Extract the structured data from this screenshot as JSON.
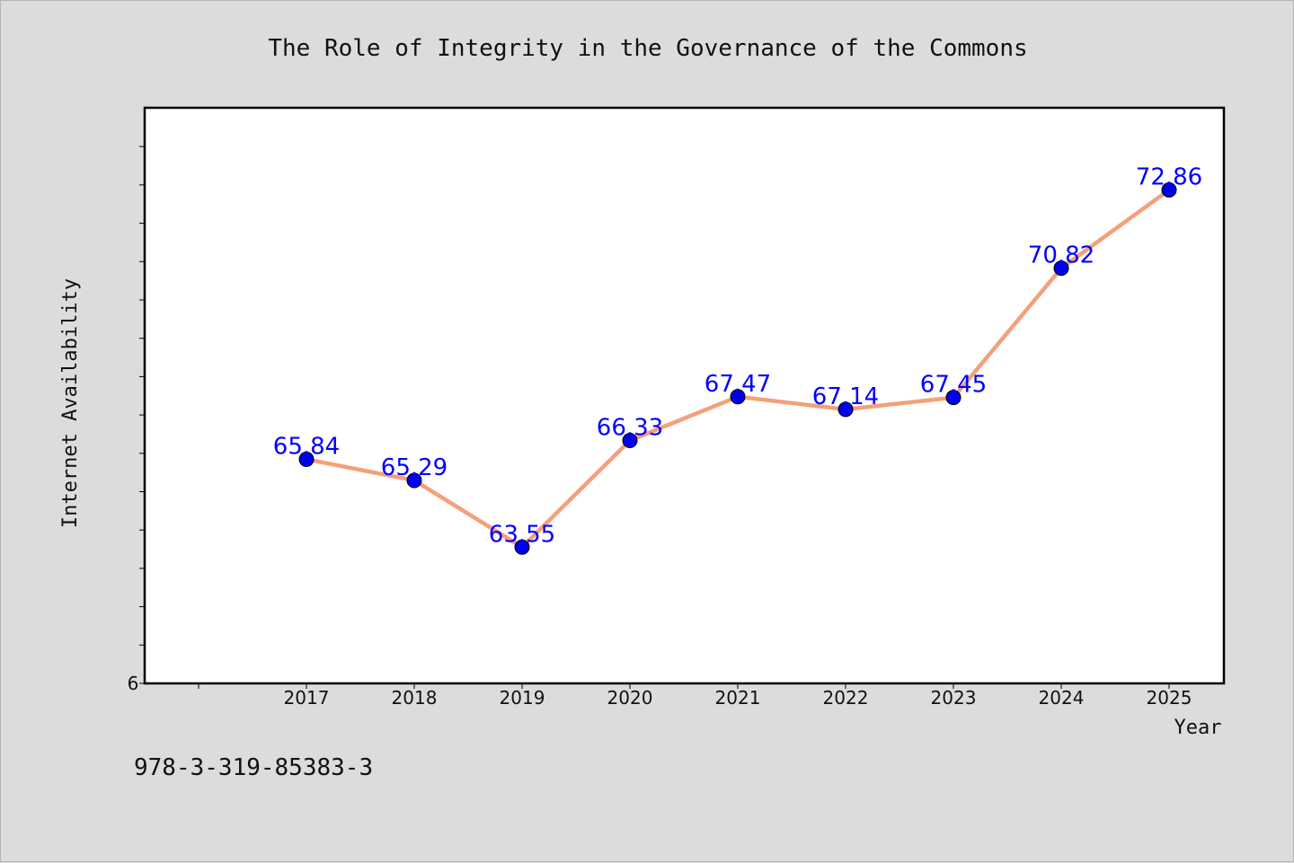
{
  "chart_data": {
    "type": "line",
    "title": "The Role of Integrity in the Governance of the Commons",
    "xlabel": "Year",
    "ylabel": "Internet Availability",
    "categories": [
      "2017",
      "2018",
      "2019",
      "2020",
      "2021",
      "2022",
      "2023",
      "2024",
      "2025"
    ],
    "series": [
      {
        "values": [
          65.84,
          65.29,
          63.55,
          66.33,
          67.47,
          67.14,
          67.45,
          70.82,
          72.86
        ],
        "labels": [
          "65.84",
          "65.29",
          "63.55",
          "66.33",
          "67.47",
          "67.14",
          "67.45",
          "70.82",
          "72.86"
        ],
        "line_color": "#f4a07a",
        "marker_color": "#0000ee",
        "label_color": "#0000ff"
      }
    ],
    "ylim": [
      60,
      75
    ],
    "y_tick_labels": [
      "6"
    ],
    "grid": false,
    "legend": "none"
  },
  "footer": {
    "isbn": "978-3-319-85383-3"
  },
  "colors": {
    "background": "#dcdcdc",
    "plot_background": "#ffffff",
    "axis": "#000000"
  }
}
